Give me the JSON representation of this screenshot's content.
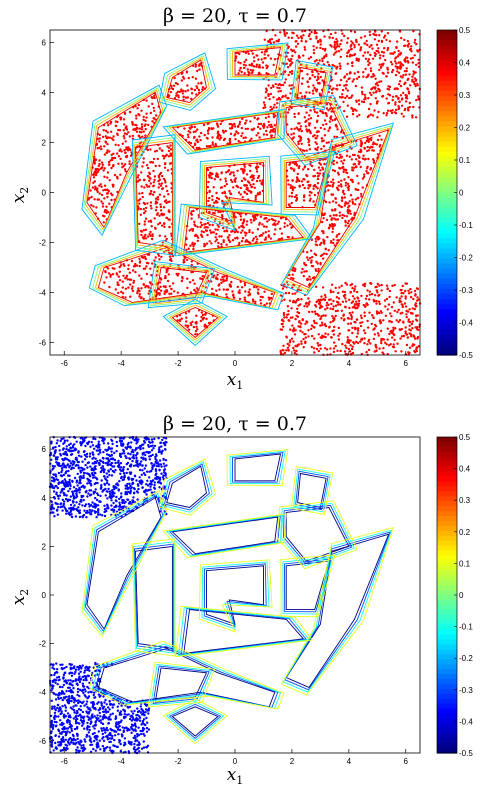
{
  "chart_data": [
    {
      "type": "scatter",
      "title": "β = 20, τ = 0.7",
      "xlabel": "x1",
      "ylabel": "x2",
      "xlim": [
        -6.5,
        6.5
      ],
      "ylim": [
        -6.5,
        6.5
      ],
      "x_ticks": [
        "-6",
        "-4",
        "-2",
        "0",
        "2",
        "4",
        "6"
      ],
      "y_ticks": [
        "-6",
        "-4",
        "-2",
        "0",
        "2",
        "4",
        "6"
      ],
      "point_color": "#ff0000",
      "region": "spiral_maze",
      "contour_levels": [
        -0.5,
        -0.4,
        -0.3,
        -0.2,
        -0.1,
        0,
        0.1,
        0.2,
        0.3,
        0.4
      ],
      "colorbar": {
        "colormap": "jet",
        "ticks": [
          "0.5",
          "0.4",
          "0.3",
          "0.2",
          "0.1",
          "0",
          "-0.1",
          "-0.2",
          "-0.3",
          "-0.4",
          "-0.5"
        ],
        "range": [
          -0.5,
          0.5
        ]
      }
    },
    {
      "type": "scatter",
      "title": "β = 20, τ = 0.7",
      "xlabel": "x1",
      "ylabel": "x2",
      "xlim": [
        -6.5,
        6.5
      ],
      "ylim": [
        -6.5,
        6.5
      ],
      "x_ticks": [
        "-6",
        "-4",
        "-2",
        "0",
        "2",
        "4",
        "6"
      ],
      "y_ticks": [
        "-6",
        "-4",
        "-2",
        "0",
        "2",
        "4",
        "6"
      ],
      "point_color": "#0000ff",
      "region": "spiral_maze_complement",
      "contour_levels": [
        -0.5,
        -0.4,
        -0.3,
        -0.2,
        -0.1,
        0,
        0.1,
        0.2,
        0.3,
        0.4
      ],
      "colorbar": {
        "colormap": "jet",
        "ticks": [
          "0.5",
          "0.4",
          "0.3",
          "0.2",
          "0.1",
          "0",
          "-0.1",
          "-0.2",
          "-0.3",
          "-0.4",
          "-0.5"
        ],
        "range": [
          -0.5,
          0.5
        ]
      }
    }
  ]
}
